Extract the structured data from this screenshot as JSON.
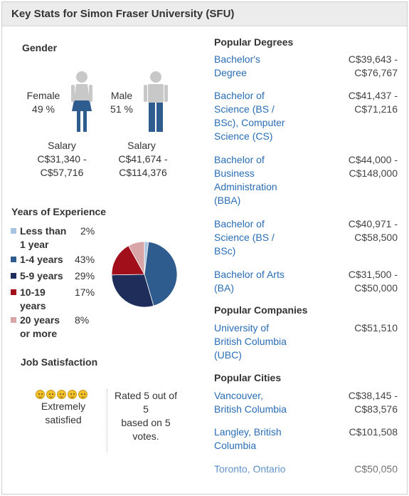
{
  "header": {
    "title": "Key Stats for Simon Fraser University (SFU)"
  },
  "gender": {
    "title": "Gender",
    "female": {
      "label": "Female",
      "percent": "49 %",
      "salary_label": "Salary",
      "salary_low": "C$31,340 -",
      "salary_high": "C$57,716"
    },
    "male": {
      "label": "Male",
      "percent": "51 %",
      "salary_label": "Salary",
      "salary_low": "C$41,674 -",
      "salary_high": "C$114,376"
    }
  },
  "experience": {
    "title": "Years of Experience",
    "items": [
      {
        "line1": "Less than",
        "line2": "1 year",
        "percent": "2%",
        "value": 2,
        "color": "#a8c4e0"
      },
      {
        "line1": "1-4 years",
        "line2": "",
        "percent": "43%",
        "value": 43,
        "color": "#2f5c8f"
      },
      {
        "line1": "5-9 years",
        "line2": "",
        "percent": "29%",
        "value": 29,
        "color": "#1f2d5a"
      },
      {
        "line1": "10-19",
        "line2": "years",
        "percent": "17%",
        "value": 17,
        "color": "#a10f1a"
      },
      {
        "line1": "20 years",
        "line2": "or more",
        "percent": "8%",
        "value": 8,
        "color": "#d9a6a8"
      }
    ]
  },
  "job_satisfaction": {
    "title": "Job Satisfaction",
    "rating_text": "Extremely satisfied",
    "rating_value": 5,
    "rating_max": 5,
    "rated_line1": "Rated 5 out of",
    "rated_line2": "5",
    "rated_line3": "based on 5",
    "rated_line4": "votes."
  },
  "popular_degrees": {
    "title": "Popular Degrees",
    "items": [
      {
        "lines": [
          "Bachelor's",
          "Degree"
        ],
        "low": "C$39,643 -",
        "high": "C$76,767"
      },
      {
        "lines": [
          "Bachelor of",
          "Science (BS /",
          "BSc), Computer",
          "Science (CS)"
        ],
        "low": "C$41,437 -",
        "high": "C$71,216"
      },
      {
        "lines": [
          "Bachelor of",
          "Business",
          "Administration",
          "(BBA)"
        ],
        "low": "C$44,000 -",
        "high": "C$148,000"
      },
      {
        "lines": [
          "Bachelor of",
          "Science (BS /",
          "BSc)"
        ],
        "low": "C$40,971 -",
        "high": "C$58,500"
      },
      {
        "lines": [
          "Bachelor of Arts",
          "(BA)"
        ],
        "low": "C$31,500 -",
        "high": "C$50,000"
      }
    ]
  },
  "popular_companies": {
    "title": "Popular Companies",
    "items": [
      {
        "lines": [
          "University of",
          "British Columbia",
          "(UBC)"
        ],
        "value": "C$51,510"
      }
    ]
  },
  "popular_cities": {
    "title": "Popular Cities",
    "items": [
      {
        "lines": [
          "Vancouver,",
          "British Columbia"
        ],
        "low": "C$38,145 -",
        "high": "C$83,576"
      },
      {
        "lines": [
          "Langley, British",
          "Columbia"
        ],
        "low": "C$101,508",
        "high": ""
      },
      {
        "lines": [
          "Toronto, Ontario"
        ],
        "low": "C$50,050",
        "high": ""
      }
    ]
  }
}
